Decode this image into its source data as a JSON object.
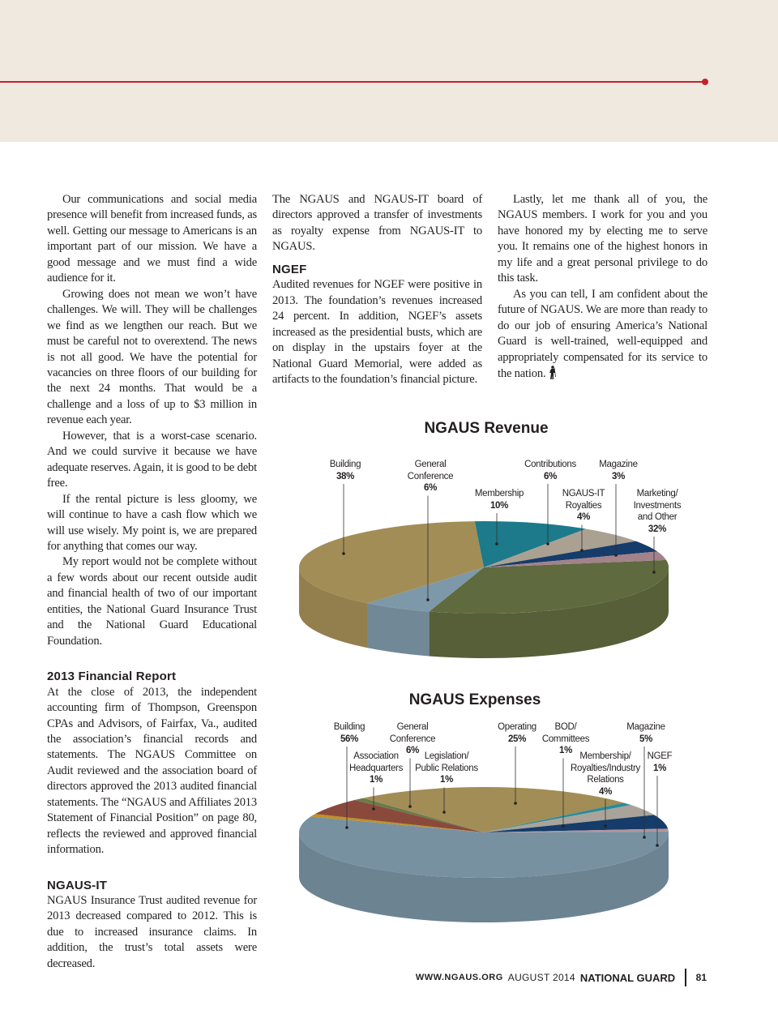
{
  "article": {
    "col1": {
      "paragraphs": [
        "Our communications and social media presence will benefit from increased funds, as well. Getting our message to Americans is an important part of our mission. We have a good message and we must find a wide audience for it.",
        "Growing does not mean we won’t have challenges. We will. They will be challenges we find as we lengthen our reach. But we must be careful not to overextend. The news is not all good. We have the potential for vacancies on three floors of our building for the next 24 months. That would be a challenge and a loss of up to $3 million in revenue each year.",
        "However, that is a worst-case scenario. And we could survive it because we have adequate reserves. Again, it is good to be debt free.",
        "If the rental picture is less gloomy, we will continue to have a cash flow which we will use wisely. My point is, we are prepared for anything that comes our way.",
        "My report would not be complete without a few words about our recent outside audit and financial health of two of our important entities, the National Guard Insurance Trust and the National Guard Educational Foundation."
      ],
      "heading_financial": "2013 Financial Report",
      "financial_text": "At the close of 2013, the independent accounting firm of Thompson, Greenspon CPAs and Advisors, of Fairfax, Va., audited the association’s financial records and statements. The NGAUS Committee on Audit reviewed and the association board of directors approved the 2013 audited financial statements. The “NGAUS and Affiliates 2013 Statement of Financial Position” on page 80, reflects the reviewed and approved financial information.",
      "heading_it": "NGAUS-IT",
      "it_text": "NGAUS Insurance Trust audited revenue for 2013 decreased compared to 2012. This is due to increased insurance claims. In addition, the trust’s total assets were decreased."
    },
    "col2": {
      "intro": "The NGAUS and NGAUS-IT board of directors approved a transfer of investments as royalty expense from NGAUS-IT to NGAUS.",
      "heading_ngef": "NGEF",
      "ngef_text": "Audited revenues for NGEF were positive in 2013. The foundation’s revenues increased 24 percent. In addition, NGEF’s assets increased as the presidential busts, which are on display in the upstairs foyer at the National Guard Memorial, were added as artifacts to the foundation’s financial picture."
    },
    "col3": {
      "paragraphs": [
        "Lastly, let me thank all of you, the NGAUS members. I work for you and you have honored my by electing me to serve you. It remains one of the highest honors in my life and a great personal privilege to do this task.",
        "As you can tell, I am confident about the future of NGAUS. We are more than ready to do our job of ensuring America’s National Guard is well-trained, well-equipped and appropriately compensated for its service to the nation."
      ],
      "end_icon": "minuteman-icon"
    }
  },
  "chart_data": [
    {
      "type": "pie",
      "title": "NGAUS Revenue",
      "slices": [
        {
          "label": "Marketing/ Investments and Other",
          "lines": [
            "Marketing/",
            "Investments",
            "and Other"
          ],
          "value": 32,
          "pct": "32%",
          "color": "#5f6a3e"
        },
        {
          "label": "General Conference",
          "lines": [
            "General",
            "Conference"
          ],
          "value": 6,
          "pct": "6%",
          "color": "#7d98a8"
        },
        {
          "label": "Building",
          "lines": [
            "Building"
          ],
          "value": 38,
          "pct": "38%",
          "color": "#a28d56"
        },
        {
          "label": "Membership",
          "lines": [
            "Membership"
          ],
          "value": 10,
          "pct": "10%",
          "color": "#1c7a8b"
        },
        {
          "label": "Contributions",
          "lines": [
            "Contributions"
          ],
          "value": 6,
          "pct": "6%",
          "color": "#aaa192"
        },
        {
          "label": "NGAUS-IT Royalties",
          "lines": [
            "NGAUS-IT",
            "Royalties"
          ],
          "value": 4,
          "pct": "4%",
          "color": "#153c6a"
        },
        {
          "label": "Magazine",
          "lines": [
            "Magazine"
          ],
          "value": 3,
          "pct": "3%",
          "color": "#a3828b"
        }
      ]
    },
    {
      "type": "pie",
      "title": "NGAUS Expenses",
      "slices": [
        {
          "label": "Building",
          "lines": [
            "Building"
          ],
          "value": 56,
          "pct": "56%",
          "color": "#7891a1"
        },
        {
          "label": "Association Headquarters",
          "lines": [
            "Association",
            "Headquarters"
          ],
          "value": 1,
          "pct": "1%",
          "color": "#c09022"
        },
        {
          "label": "General Conference",
          "lines": [
            "General",
            "Conference"
          ],
          "value": 6,
          "pct": "6%",
          "color": "#8a4a3b"
        },
        {
          "label": "Legislation/ Public Relations",
          "lines": [
            "Legislation/",
            "Public Relations"
          ],
          "value": 1,
          "pct": "1%",
          "color": "#6a7a4a"
        },
        {
          "label": "Operating",
          "lines": [
            "Operating"
          ],
          "value": 25,
          "pct": "25%",
          "color": "#a28d56"
        },
        {
          "label": "BOD/ Committees",
          "lines": [
            "BOD/",
            "Committees"
          ],
          "value": 1,
          "pct": "1%",
          "color": "#2a8b9a"
        },
        {
          "label": "Membership/ Royalties/Industry Relations",
          "lines": [
            "Membership/",
            "Royalties/Industry",
            "Relations"
          ],
          "value": 4,
          "pct": "4%",
          "color": "#aaa39a"
        },
        {
          "label": "Magazine",
          "lines": [
            "Magazine"
          ],
          "value": 5,
          "pct": "5%",
          "color": "#153c6a"
        },
        {
          "label": "NGEF",
          "lines": [
            "NGEF"
          ],
          "value": 1,
          "pct": "1%",
          "color": "#b3949a"
        }
      ]
    }
  ],
  "footer": {
    "url": "WWW.NGAUS.ORG",
    "issue": "AUGUST 2014",
    "magazine": "NATIONAL GUARD",
    "page": "81"
  },
  "colors": {
    "accent_red": "#c8202b",
    "header_band": "#efe9df"
  }
}
